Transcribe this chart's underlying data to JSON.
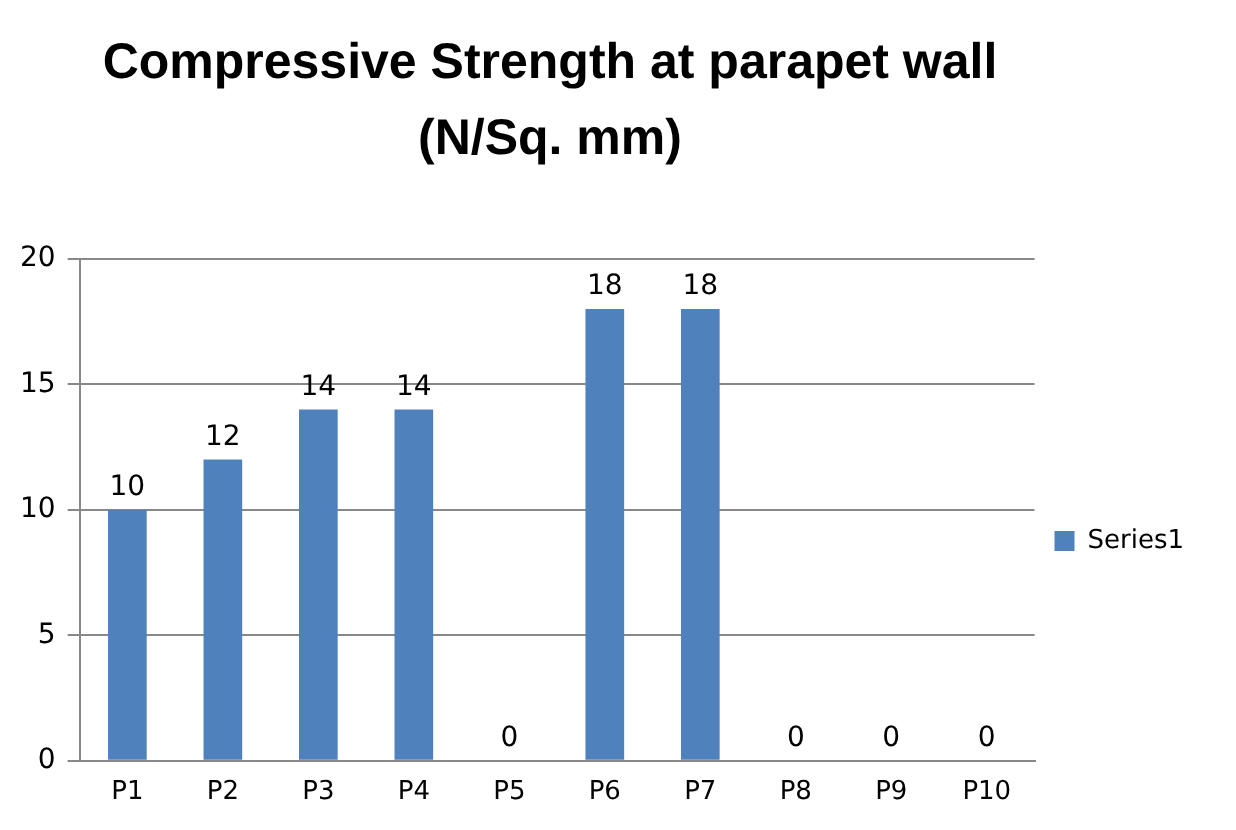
{
  "chart_data": {
    "type": "bar",
    "title": "Compressive Strength at parapet wall (N/Sq. mm)",
    "categories": [
      "P1",
      "P2",
      "P3",
      "P4",
      "P5",
      "P6",
      "P7",
      "P8",
      "P9",
      "P10"
    ],
    "series": [
      {
        "name": "Series1",
        "color": "#4f81bd",
        "values": [
          10,
          12,
          14,
          14,
          0,
          18,
          18,
          0,
          0,
          0
        ]
      }
    ],
    "ylim": [
      0,
      20
    ],
    "yticks": [
      0,
      5,
      10,
      15,
      20
    ],
    "grid": "y",
    "legend": "right",
    "data_labels": true
  }
}
